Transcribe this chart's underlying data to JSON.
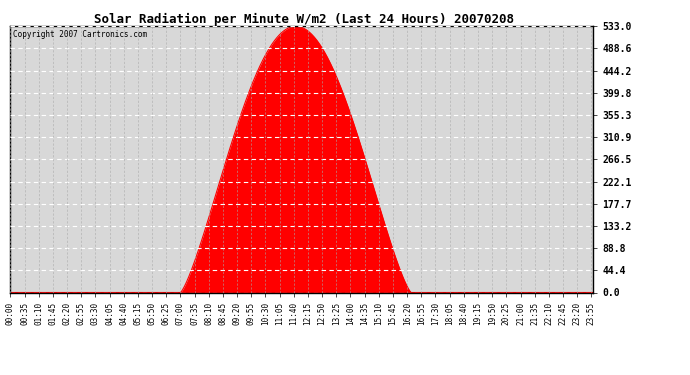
{
  "title": "Solar Radiation per Minute W/m2 (Last 24 Hours) 20070208",
  "copyright_text": "Copyright 2007 Cartronics.com",
  "fill_color": "#FF0000",
  "line_color": "#FF0000",
  "background_color": "#FFFFFF",
  "plot_bg_color": "#D8D8D8",
  "y_ticks": [
    0.0,
    44.4,
    88.8,
    133.2,
    177.7,
    222.1,
    266.5,
    310.9,
    355.3,
    399.8,
    444.2,
    488.6,
    533.0
  ],
  "ymax": 533.0,
  "ymin": 0.0,
  "peak_value": 533.0,
  "peak_hour": 11.5,
  "rise_hour": 7.0,
  "set_hour": 16.5
}
